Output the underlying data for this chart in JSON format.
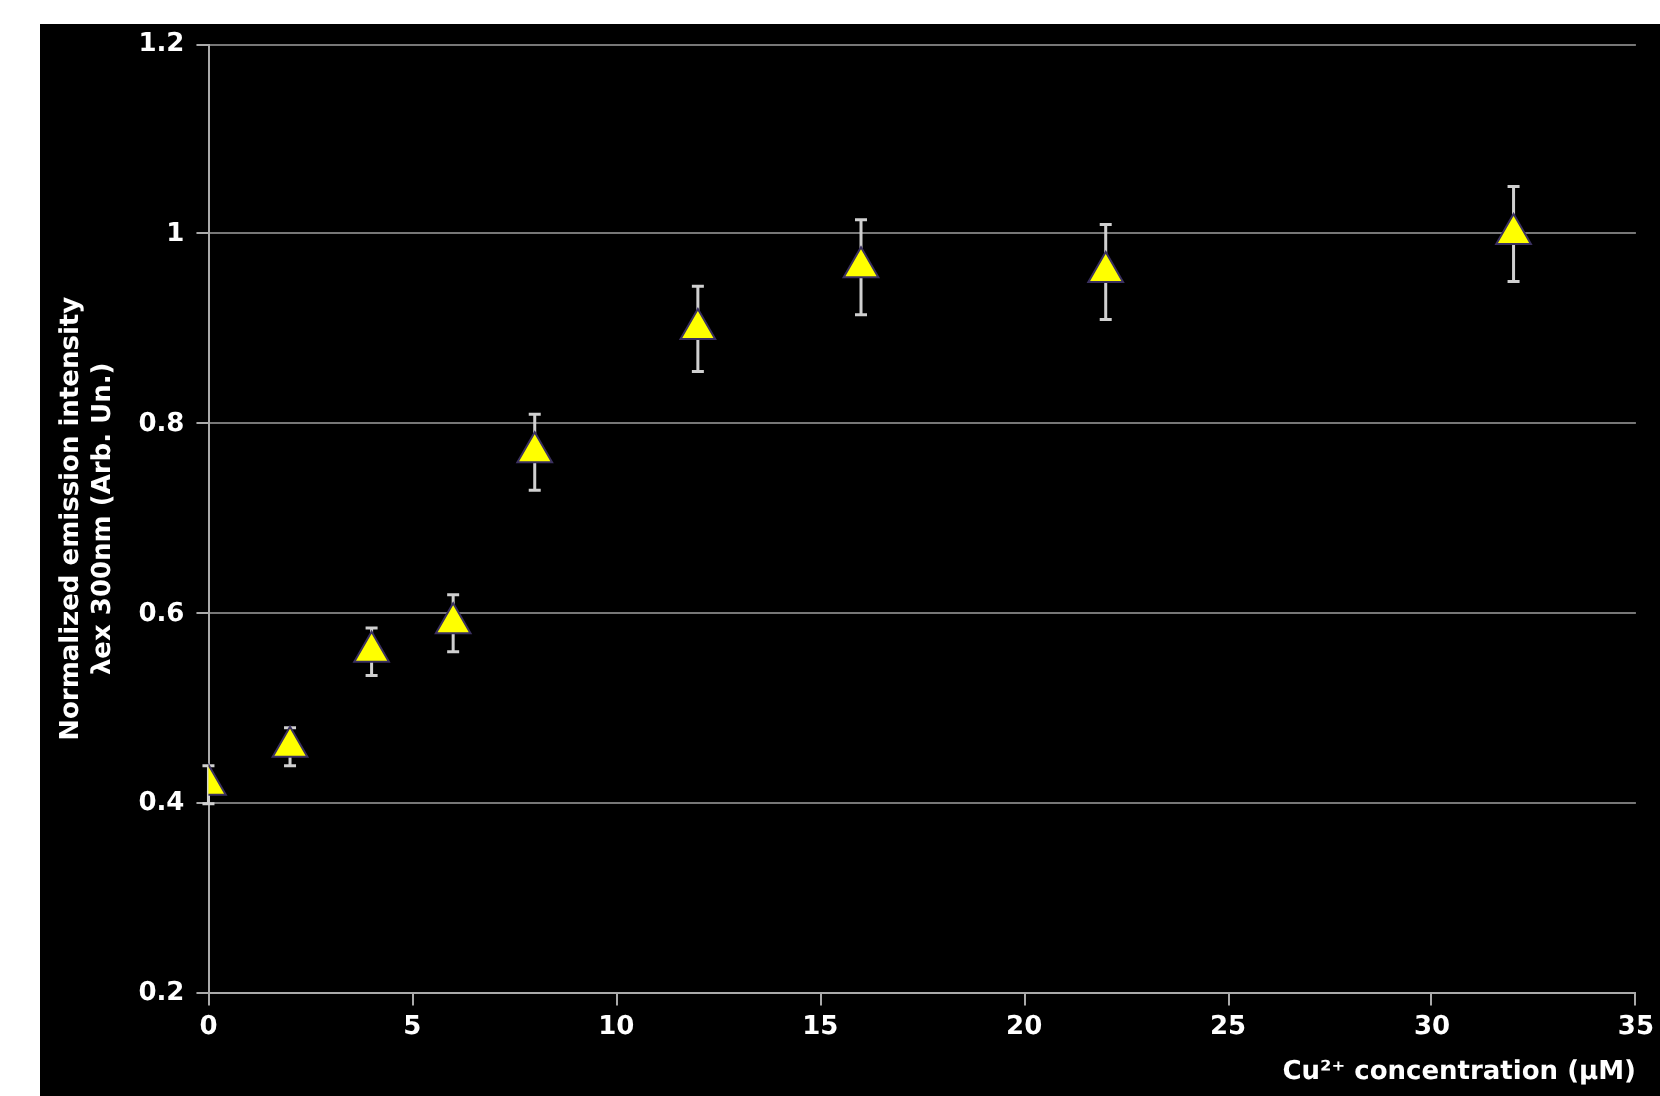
{
  "chart_data": {
    "type": "scatter",
    "xlabel": "Cu²⁺ concentration (µM)",
    "ylabel": "Normalized emission intensity\nλex 300nm (Arb. Un.)",
    "x": [
      0,
      2,
      4,
      6,
      8,
      12,
      16,
      22,
      32
    ],
    "series": [
      {
        "color": "#ffff00",
        "values": [
          0.42,
          0.46,
          0.56,
          0.59,
          0.77,
          0.9,
          0.965,
          0.96,
          1.0
        ],
        "errors": [
          0.02,
          0.02,
          0.025,
          0.03,
          0.04,
          0.045,
          0.05,
          0.05,
          0.05
        ]
      }
    ],
    "xlim": [
      0,
      35
    ],
    "xticks": [
      0,
      5,
      10,
      15,
      20,
      25,
      30,
      35
    ],
    "ylim": [
      0.2,
      1.2
    ],
    "yticks": [
      0.2,
      0.4,
      0.6,
      0.8,
      1,
      1.2
    ],
    "grid": "y",
    "marker": "triangle",
    "legend": false
  }
}
